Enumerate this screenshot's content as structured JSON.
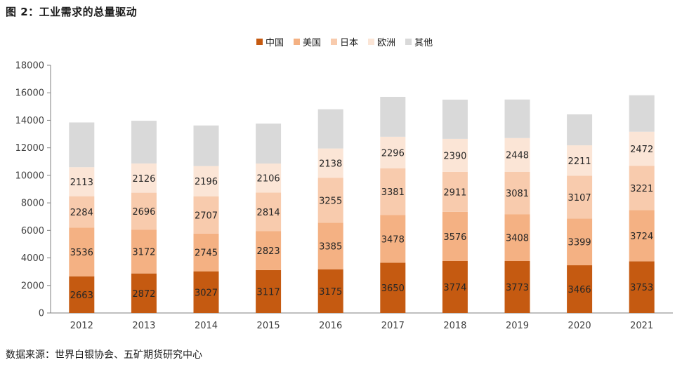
{
  "figure_title": "图 2：工业需求的总量驱动",
  "source_note": "数据来源：世界白银协会、五矿期货研究中心",
  "colors": {
    "china": "#c55a11",
    "usa": "#f4b183",
    "japan": "#f8cbad",
    "europe": "#fbe5d6",
    "other": "#d9d9d9"
  },
  "chart_data": {
    "type": "bar",
    "stacked": true,
    "title": "",
    "xlabel": "",
    "ylabel": "",
    "ylim": [
      0,
      18000
    ],
    "yticks": [
      0,
      2000,
      4000,
      6000,
      8000,
      10000,
      12000,
      14000,
      16000,
      18000
    ],
    "grid": false,
    "legend_position": "top",
    "categories": [
      "2012",
      "2013",
      "2014",
      "2015",
      "2016",
      "2017",
      "2018",
      "2019",
      "2020",
      "2021"
    ],
    "series": [
      {
        "name": "中国",
        "values": [
          2663,
          2872,
          3027,
          3117,
          3175,
          3650,
          3774,
          3773,
          3466,
          3753
        ],
        "labeled": true
      },
      {
        "name": "美国",
        "values": [
          3536,
          3172,
          2745,
          2823,
          3385,
          3478,
          3576,
          3408,
          3399,
          3724
        ],
        "labeled": true
      },
      {
        "name": "日本",
        "values": [
          2284,
          2696,
          2707,
          2814,
          3255,
          3381,
          2911,
          3081,
          3107,
          3221
        ],
        "labeled": true
      },
      {
        "name": "欧洲",
        "values": [
          2113,
          2126,
          2196,
          2106,
          2138,
          2296,
          2390,
          2448,
          2211,
          2472
        ],
        "labeled": true
      },
      {
        "name": "其他",
        "values": [
          3250,
          3100,
          2950,
          2900,
          2850,
          2900,
          2850,
          2800,
          2250,
          2650
        ],
        "labeled": false
      }
    ]
  }
}
